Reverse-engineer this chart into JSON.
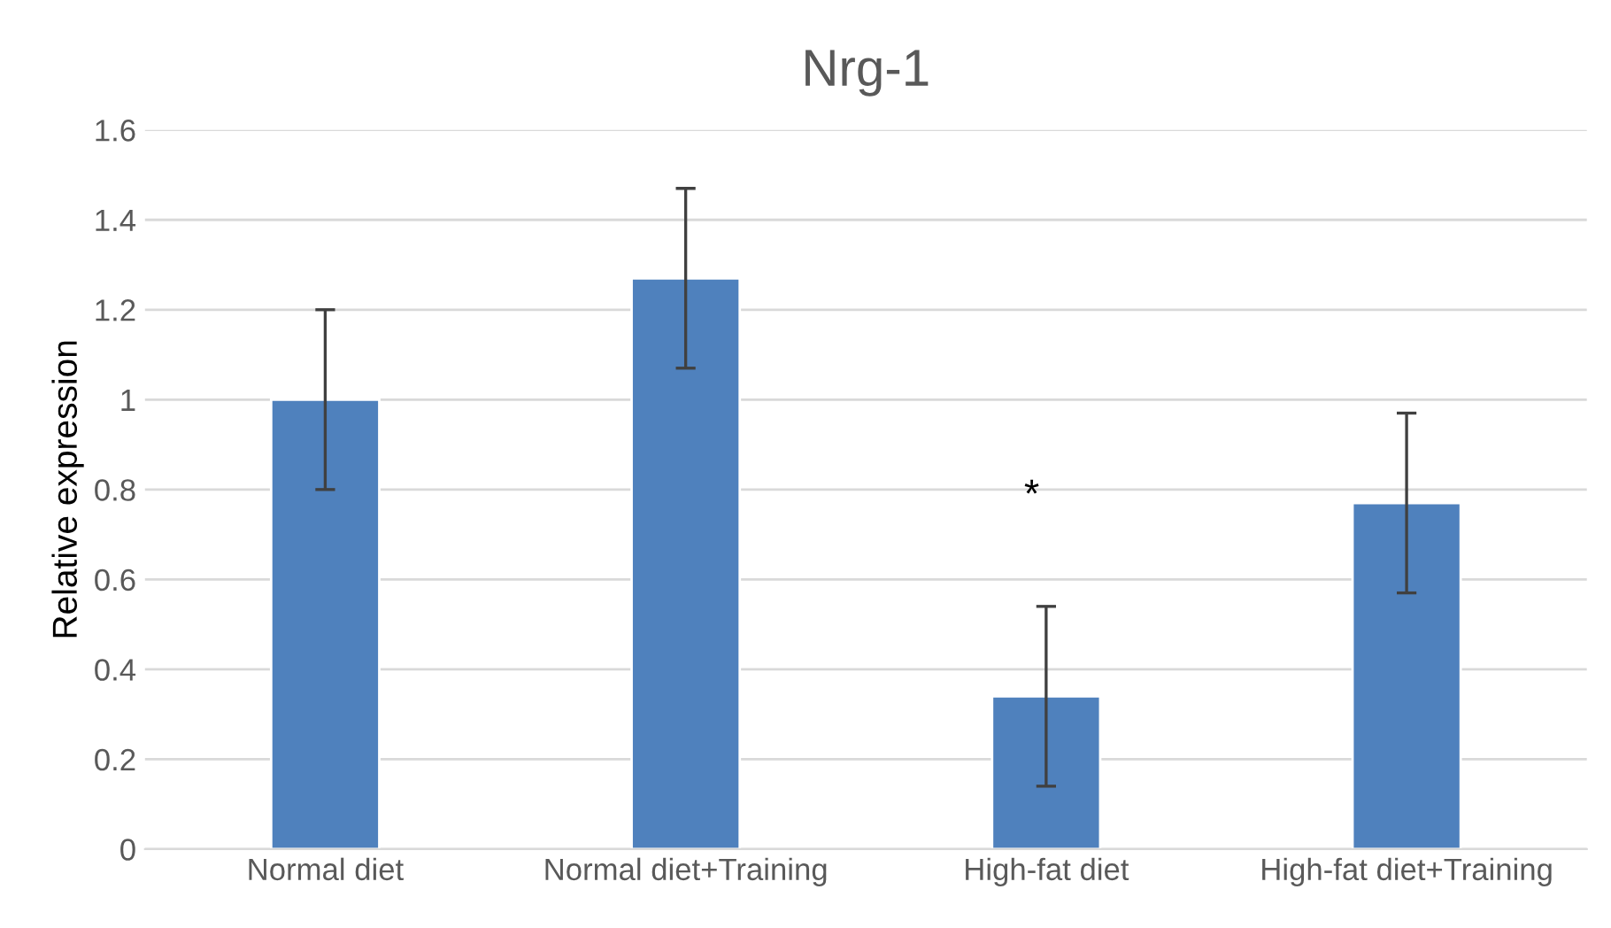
{
  "chart_data": {
    "type": "bar",
    "title": "Nrg-1",
    "ylabel": "Relative expression",
    "categories": [
      "Normal diet",
      "Normal diet+Training",
      "High-fat diet",
      "High-fat diet+Training"
    ],
    "values": [
      1.0,
      1.27,
      0.34,
      0.77
    ],
    "errors": [
      0.2,
      0.2,
      0.2,
      0.2
    ],
    "color": "#4f81bd",
    "ylim": [
      0,
      1.6
    ],
    "yticks": [
      0,
      0.2,
      0.4,
      0.6,
      0.8,
      1,
      1.2,
      1.4,
      1.6
    ],
    "grid": "y",
    "legend": false,
    "annotations": [
      "*"
    ]
  }
}
